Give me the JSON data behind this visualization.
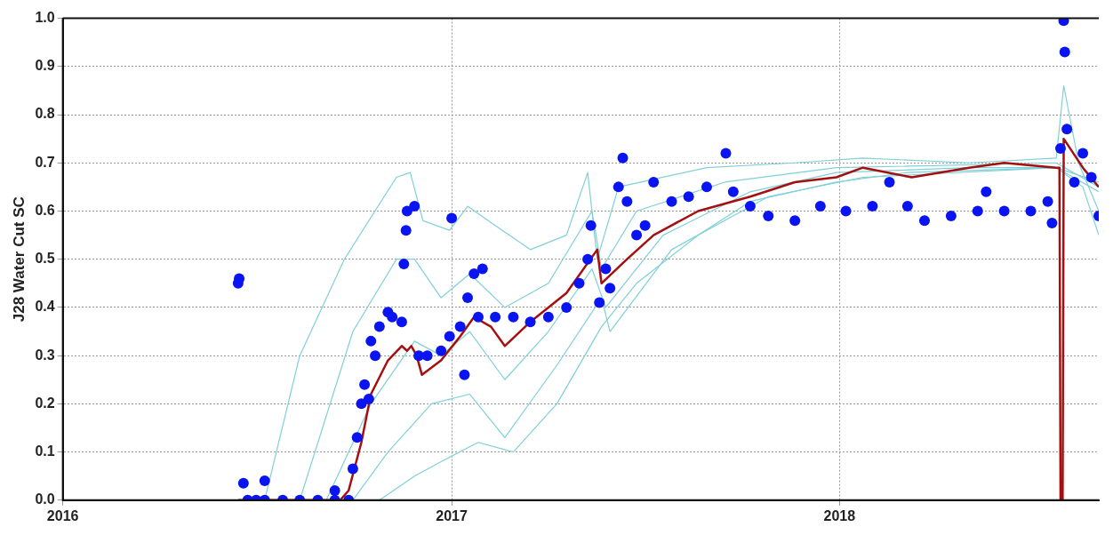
{
  "chart_data": {
    "type": "line",
    "ylabel": "J28 Water Cut SC",
    "xlim": [
      "2016",
      "2018-09-02"
    ],
    "xticks": [
      "2016",
      "2017",
      "2018"
    ],
    "ylim": [
      0,
      1
    ],
    "yticks": [
      {
        "value": 0,
        "label": "0.0"
      },
      0.1,
      0.2,
      0.3,
      0.4,
      0.5,
      0.6,
      0.7,
      0.8,
      0.9,
      {
        "value": 1,
        "label": "1.0"
      }
    ],
    "grid": true,
    "legend": false,
    "series": [
      {
        "type": "line",
        "color": "#7fd0d8",
        "marker": "none",
        "line_style": "solid",
        "x": [
          "2016-06-14",
          "2016-07-09",
          "2016-08-11",
          "2016-09-22",
          "2016-11-10",
          "2016-11-23",
          "2016-12-05",
          "2016-12-30",
          "2017-01-16",
          "2017-02-11",
          "2017-03-16",
          "2017-04-19",
          "2017-05-09",
          "2017-05-18",
          "2017-06-07",
          "2017-08-29",
          "2017-11-20",
          "2018-01-23",
          "2018-05-03",
          "2018-07-24",
          "2018-07-31",
          "2018-08-14",
          "2018-09-02"
        ],
        "values": [
          0,
          0,
          0.3,
          0.5,
          0.67,
          0.68,
          0.58,
          0.56,
          0.61,
          0.57,
          0.52,
          0.55,
          0.68,
          0.5,
          0.65,
          0.69,
          0.7,
          0.71,
          0.7,
          0.71,
          0.86,
          0.7,
          0.6
        ]
      },
      {
        "type": "line",
        "color": "#7fd0d8",
        "marker": "none",
        "line_style": "solid",
        "x": [
          "2016-06-14",
          "2016-08-11",
          "2016-09-30",
          "2016-11-10",
          "2016-11-27",
          "2016-12-22",
          "2017-01-18",
          "2017-02-20",
          "2017-04-02",
          "2017-05-13",
          "2017-05-22",
          "2017-06-24",
          "2017-09-15",
          "2017-12-29",
          "2018-07-24",
          "2018-09-02"
        ],
        "values": [
          0,
          0,
          0.35,
          0.5,
          0.5,
          0.42,
          0.47,
          0.4,
          0.45,
          0.6,
          0.48,
          0.6,
          0.66,
          0.69,
          0.7,
          0.65
        ]
      },
      {
        "type": "line",
        "color": "#7fd0d8",
        "marker": "none",
        "line_style": "solid",
        "x": [
          "2016-06-14",
          "2016-09-05",
          "2016-10-17",
          "2016-11-27",
          "2016-12-22",
          "2017-01-18",
          "2017-02-20",
          "2017-04-02",
          "2017-05-13",
          "2017-05-26",
          "2017-07-19",
          "2017-10-09",
          "2017-12-29",
          "2018-05-03",
          "2018-07-24",
          "2018-09-02"
        ],
        "values": [
          0,
          0,
          0.2,
          0.33,
          0.3,
          0.35,
          0.25,
          0.35,
          0.48,
          0.4,
          0.55,
          0.64,
          0.68,
          0.69,
          0.69,
          0.66
        ]
      },
      {
        "type": "line",
        "color": "#7fd0d8",
        "marker": "none",
        "line_style": "solid",
        "x": [
          "2016-06-14",
          "2016-09-30",
          "2016-11-02",
          "2016-12-13",
          "2017-01-18",
          "2017-02-20",
          "2017-04-10",
          "2017-05-22",
          "2017-05-30",
          "2017-07-27",
          "2017-10-26",
          "2018-01-23",
          "2018-07-24",
          "2018-09-02"
        ],
        "values": [
          0,
          0,
          0.1,
          0.2,
          0.22,
          0.13,
          0.28,
          0.42,
          0.35,
          0.52,
          0.63,
          0.67,
          0.69,
          0.64
        ]
      },
      {
        "type": "line",
        "color": "#7fd0d8",
        "marker": "none",
        "line_style": "solid",
        "x": [
          "2016-06-14",
          "2016-10-25",
          "2016-11-27",
          "2016-12-22",
          "2017-01-26",
          "2017-02-28",
          "2017-04-10",
          "2017-05-22",
          "2017-06-24",
          "2017-08-21",
          "2017-10-09",
          "2017-12-29",
          "2018-03-06",
          "2018-07-24",
          "2018-08-18",
          "2018-09-02"
        ],
        "values": [
          0,
          0,
          0.05,
          0.08,
          0.12,
          0.1,
          0.2,
          0.36,
          0.45,
          0.55,
          0.62,
          0.66,
          0.68,
          0.69,
          0.65,
          0.55
        ]
      },
      {
        "type": "line",
        "color": "#a50f0f",
        "marker": "none",
        "line_style": "solid",
        "x": [
          "2016-06-14",
          "2016-09-18",
          "2016-09-26",
          "2016-10-08",
          "2016-10-17",
          "2016-11-02",
          "2016-11-15",
          "2016-11-20",
          "2016-11-24",
          "2016-11-29",
          "2016-12-04",
          "2016-12-22",
          "2017-01-09",
          "2017-01-22",
          "2017-02-07",
          "2017-02-20",
          "2017-03-16",
          "2017-04-19",
          "2017-05-18",
          "2017-05-22",
          "2017-06-15",
          "2017-07-10",
          "2017-08-21",
          "2017-10-09",
          "2017-11-20",
          "2017-12-29",
          "2018-01-23",
          "2018-03-10",
          "2018-05-03",
          "2018-06-05",
          "2018-07-24",
          "2018-07-27",
          "2018-07-28",
          "2018-07-30",
          "2018-07-31",
          "2018-08-18",
          "2018-09-02"
        ],
        "values": [
          0,
          0,
          0.02,
          0.12,
          0.22,
          0.29,
          0.32,
          0.31,
          0.32,
          0.3,
          0.26,
          0.29,
          0.34,
          0.38,
          0.36,
          0.32,
          0.37,
          0.43,
          0.52,
          0.45,
          0.5,
          0.55,
          0.6,
          0.63,
          0.66,
          0.67,
          0.69,
          0.67,
          0.69,
          0.7,
          0.69,
          0.69,
          0,
          0,
          0.75,
          0.69,
          0.65
        ]
      },
      {
        "type": "scatter",
        "color": "#0a14f0",
        "marker": "circle",
        "x": [
          "2016-06-14",
          "2016-06-15",
          "2016-06-19",
          "2016-06-23",
          "2016-07-01",
          "2016-07-09",
          "2016-07-09",
          "2016-07-26",
          "2016-08-11",
          "2016-08-28",
          "2016-09-13",
          "2016-09-13",
          "2016-09-26",
          "2016-09-30",
          "2016-10-04",
          "2016-10-08",
          "2016-10-11",
          "2016-10-15",
          "2016-10-17",
          "2016-10-21",
          "2016-10-25",
          "2016-11-02",
          "2016-11-06",
          "2016-11-15",
          "2016-11-17",
          "2016-11-19",
          "2016-11-20",
          "2016-11-27",
          "2016-12-01",
          "2016-12-09",
          "2016-12-22",
          "2016-12-30",
          "2017-01-01",
          "2017-01-09",
          "2017-01-13",
          "2017-01-16",
          "2017-01-22",
          "2017-01-26",
          "2017-01-30",
          "2017-02-11",
          "2017-02-28",
          "2017-03-16",
          "2017-04-02",
          "2017-04-19",
          "2017-05-01",
          "2017-05-09",
          "2017-05-12",
          "2017-05-20",
          "2017-05-26",
          "2017-05-30",
          "2017-06-07",
          "2017-06-11",
          "2017-06-15",
          "2017-06-24",
          "2017-07-02",
          "2017-07-10",
          "2017-07-27",
          "2017-08-12",
          "2017-08-29",
          "2017-09-16",
          "2017-09-23",
          "2017-10-09",
          "2017-10-26",
          "2017-11-20",
          "2017-12-14",
          "2018-01-07",
          "2018-02-01",
          "2018-02-17",
          "2018-03-06",
          "2018-03-22",
          "2018-04-16",
          "2018-05-11",
          "2018-05-19",
          "2018-06-05",
          "2018-06-30",
          "2018-07-16",
          "2018-07-20",
          "2018-07-28",
          "2018-07-31",
          "2018-08-01",
          "2018-08-03",
          "2018-08-10",
          "2018-08-18",
          "2018-08-26",
          "2018-09-02"
        ],
        "values": [
          0.45,
          0.46,
          0.035,
          0,
          0,
          0.04,
          0,
          0,
          0,
          0,
          0,
          0.02,
          0,
          0.065,
          0.13,
          0.2,
          0.24,
          0.21,
          0.33,
          0.3,
          0.36,
          0.39,
          0.38,
          0.37,
          0.49,
          0.56,
          0.6,
          0.61,
          0.3,
          0.3,
          0.31,
          0.34,
          0.585,
          0.36,
          0.26,
          0.42,
          0.47,
          0.38,
          0.48,
          0.38,
          0.38,
          0.37,
          0.38,
          0.4,
          0.45,
          0.5,
          0.57,
          0.41,
          0.48,
          0.44,
          0.65,
          0.71,
          0.62,
          0.55,
          0.57,
          0.66,
          0.62,
          0.63,
          0.65,
          0.72,
          0.64,
          0.61,
          0.59,
          0.58,
          0.61,
          0.6,
          0.61,
          0.66,
          0.61,
          0.58,
          0.59,
          0.6,
          0.64,
          0.6,
          0.6,
          0.62,
          0.575,
          0.73,
          0.995,
          0.93,
          0.77,
          0.66,
          0.72,
          0.67,
          0.59
        ]
      }
    ]
  }
}
